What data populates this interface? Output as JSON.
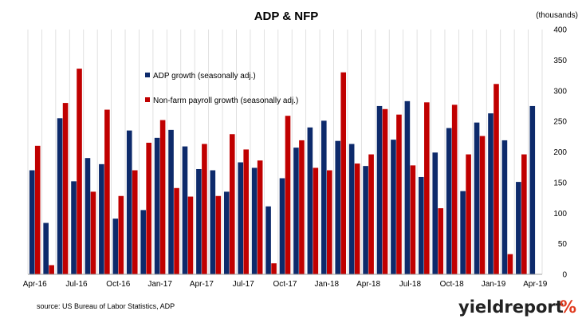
{
  "chart_data": {
    "type": "bar",
    "title": "ADP & NFP",
    "units": "(thousands)",
    "ylim": [
      0,
      400
    ],
    "y_ticks": [
      0,
      50,
      100,
      150,
      200,
      250,
      300,
      350,
      400
    ],
    "y_axis_position": "right",
    "grid": "vertical",
    "legend_position": "top-left-inside",
    "x_tick_labels": [
      {
        "index": 0,
        "label": "Apr-16"
      },
      {
        "index": 3,
        "label": "Jul-16"
      },
      {
        "index": 6,
        "label": "Oct-16"
      },
      {
        "index": 9,
        "label": "Jan-17"
      },
      {
        "index": 12,
        "label": "Apr-17"
      },
      {
        "index": 15,
        "label": "Jul-17"
      },
      {
        "index": 18,
        "label": "Oct-17"
      },
      {
        "index": 21,
        "label": "Jan-18"
      },
      {
        "index": 24,
        "label": "Apr-18"
      },
      {
        "index": 27,
        "label": "Jul-18"
      },
      {
        "index": 30,
        "label": "Oct-18"
      },
      {
        "index": 33,
        "label": "Jan-19"
      },
      {
        "index": 36,
        "label": "Apr-19"
      }
    ],
    "series": [
      {
        "name": "ADP growth (seasonally adj.)",
        "color": "#0d2a6b",
        "values": [
          170,
          84,
          255,
          152,
          190,
          180,
          91,
          235,
          105,
          223,
          236,
          209,
          172,
          170,
          135,
          183,
          174,
          111,
          157,
          207,
          240,
          251,
          218,
          213,
          177,
          275,
          220,
          283,
          159,
          199,
          239,
          136,
          248,
          263,
          219,
          151,
          275
        ]
      },
      {
        "name": "Non-farm payroll growth (seasonally adj.)",
        "color": "#c00000",
        "values": [
          210,
          15,
          280,
          336,
          135,
          269,
          128,
          170,
          215,
          252,
          141,
          127,
          213,
          128,
          229,
          204,
          186,
          18,
          259,
          219,
          174,
          170,
          330,
          181,
          196,
          270,
          261,
          178,
          281,
          108,
          277,
          196,
          226,
          311,
          33,
          196,
          null
        ]
      }
    ]
  },
  "source": "source: US Bureau of Labor Statistics, ADP",
  "logo": {
    "text": "yieldreport",
    "glyph": "%"
  }
}
